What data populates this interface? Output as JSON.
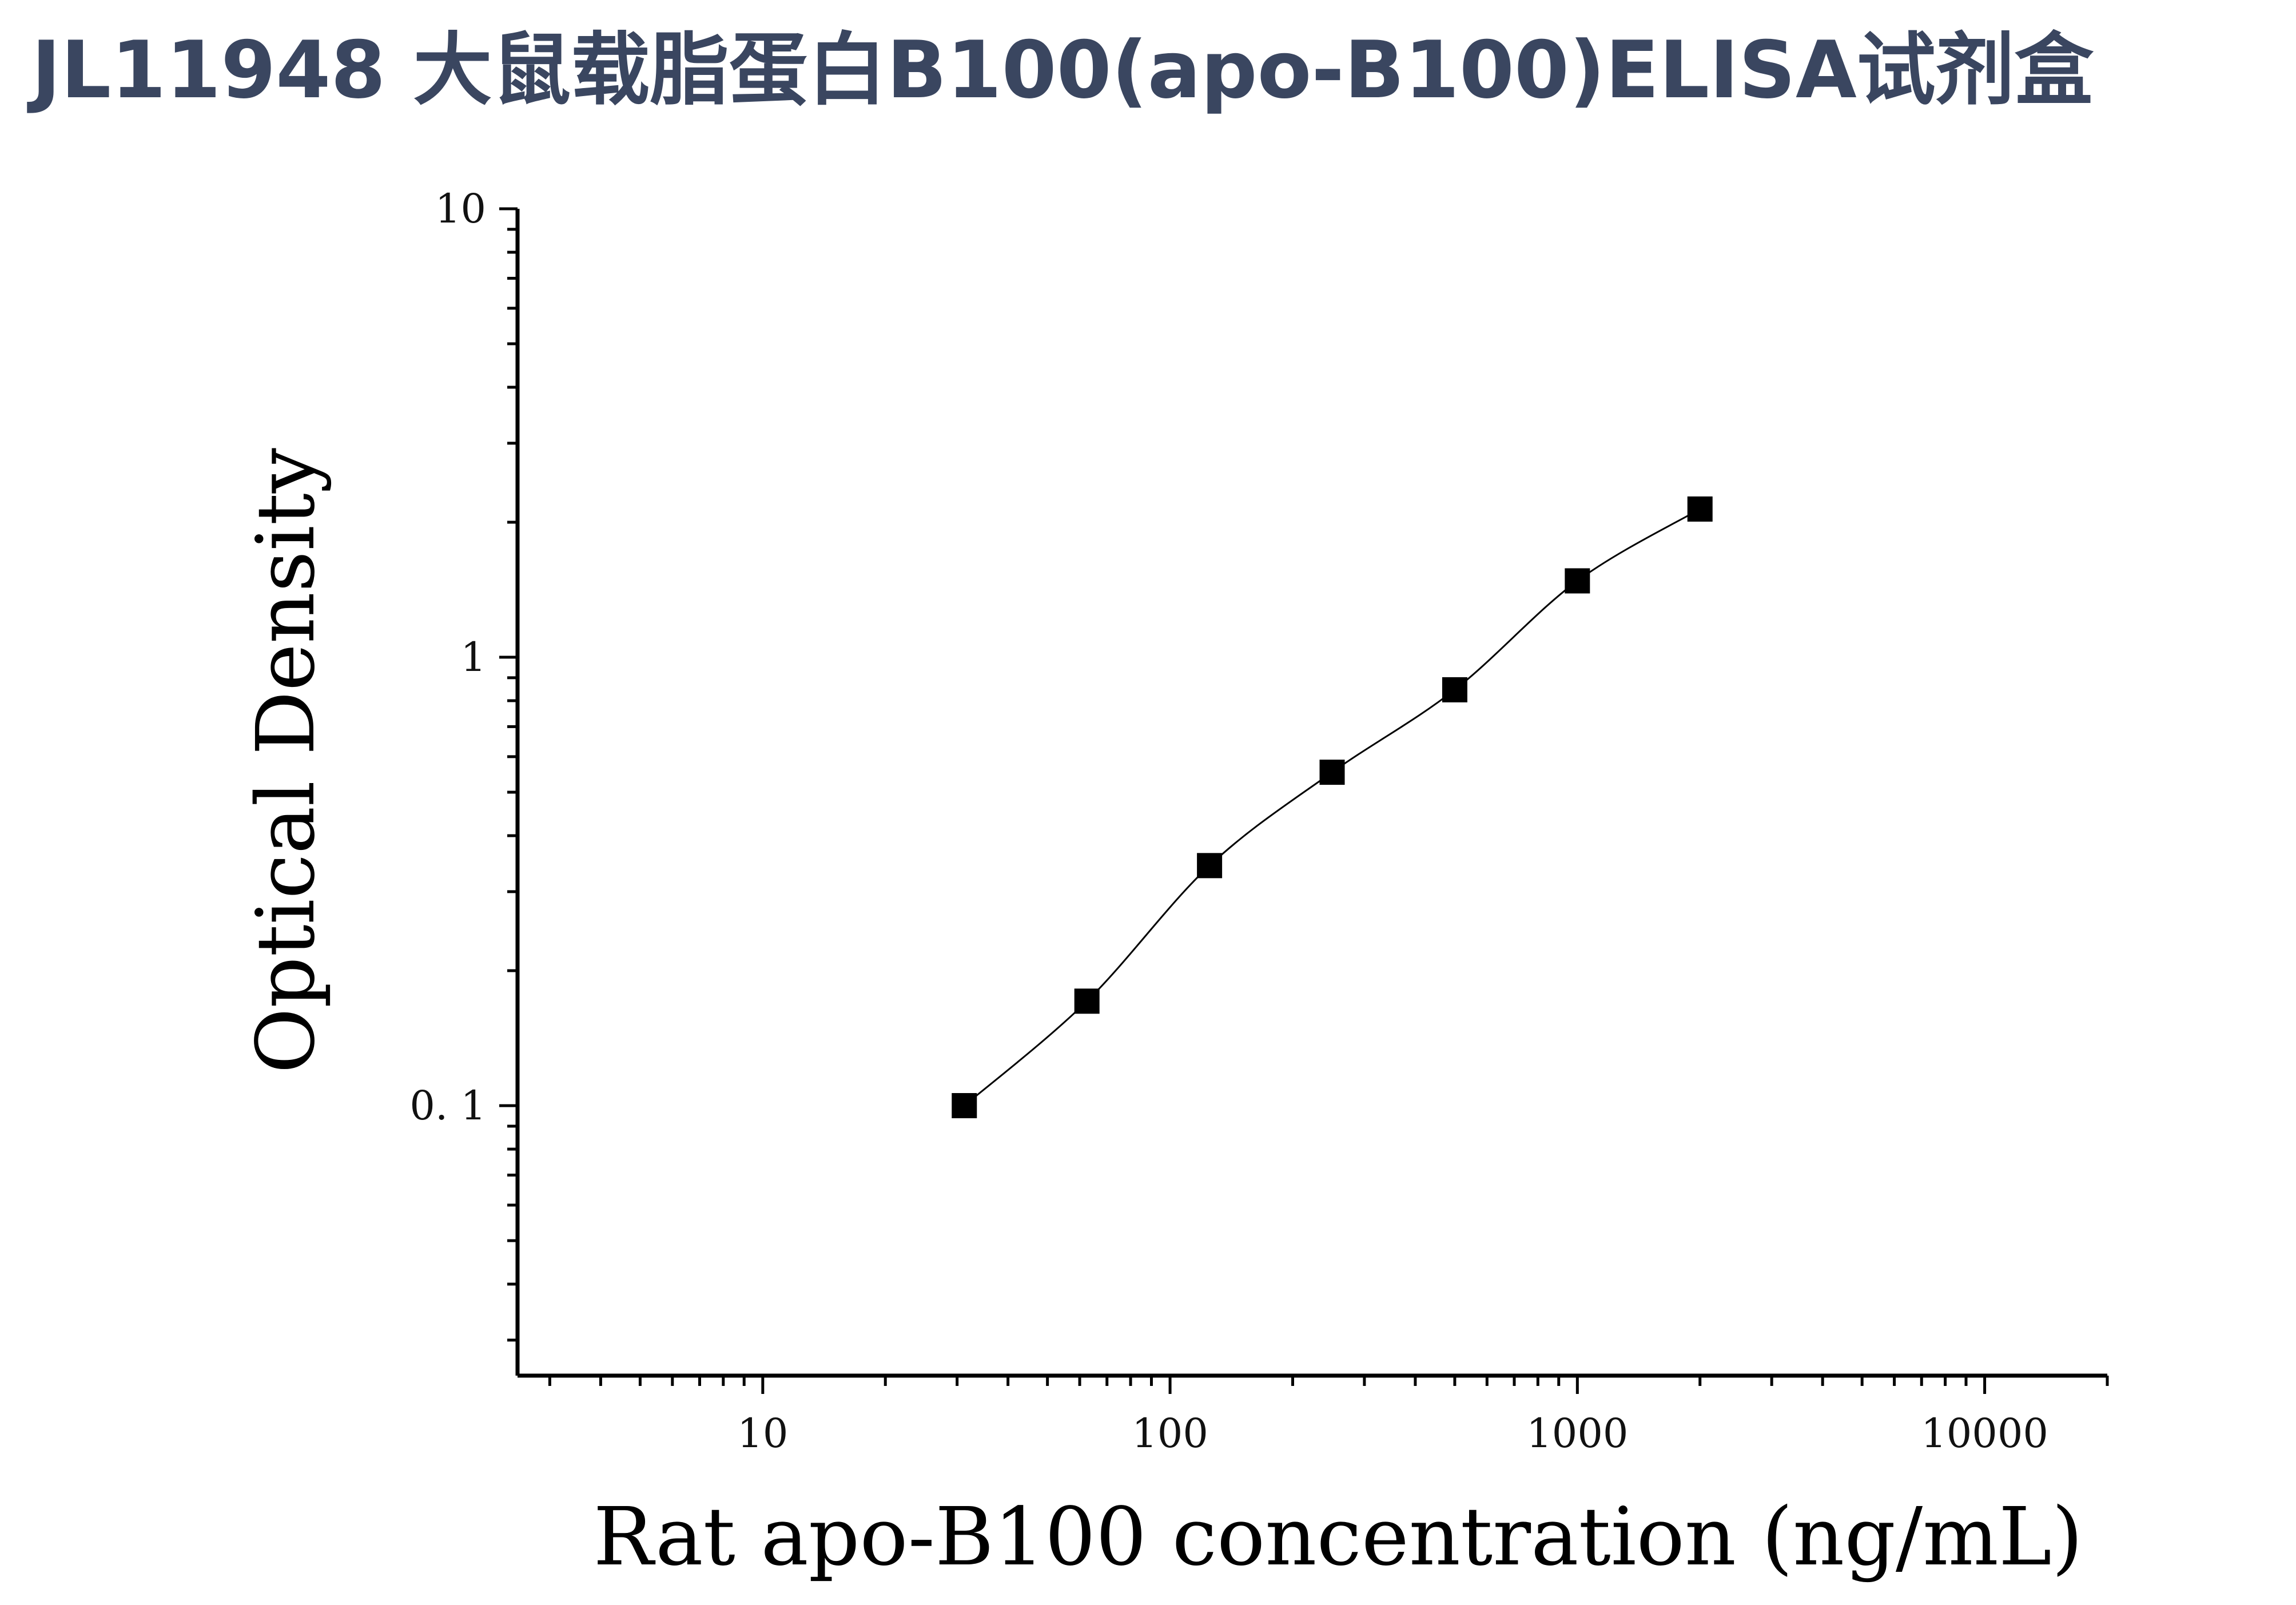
{
  "page": {
    "title": "JL11948 大鼠载脂蛋白B100(apo-B100)ELISA试剂盒",
    "title_color": "#3a4660"
  },
  "chart_data": {
    "type": "scatter",
    "title": "",
    "xlabel": "Rat apo-B100 concentration (ng/mL)",
    "ylabel": "Optical Density",
    "x_scale": "log",
    "y_scale": "log",
    "xlim": [
      2.5,
      20000
    ],
    "ylim": [
      0.025,
      10
    ],
    "x_ticks": [
      10,
      100,
      1000,
      10000
    ],
    "x_tick_labels": [
      "10",
      "100",
      "1000",
      "10000"
    ],
    "y_ticks": [
      0.1,
      1,
      10
    ],
    "y_tick_labels": [
      "0. 1",
      "1",
      "10"
    ],
    "grid": false,
    "legend": "none",
    "series": [
      {
        "x": [
          31.25,
          62.5,
          125,
          250,
          500,
          1000,
          2000
        ],
        "y": [
          0.1,
          0.171,
          0.343,
          0.554,
          0.846,
          1.48,
          2.14
        ],
        "marker": "square",
        "fit_line": true
      }
    ],
    "colors": {
      "marker": "#000000",
      "line": "#000000",
      "axis": "#000000"
    }
  }
}
